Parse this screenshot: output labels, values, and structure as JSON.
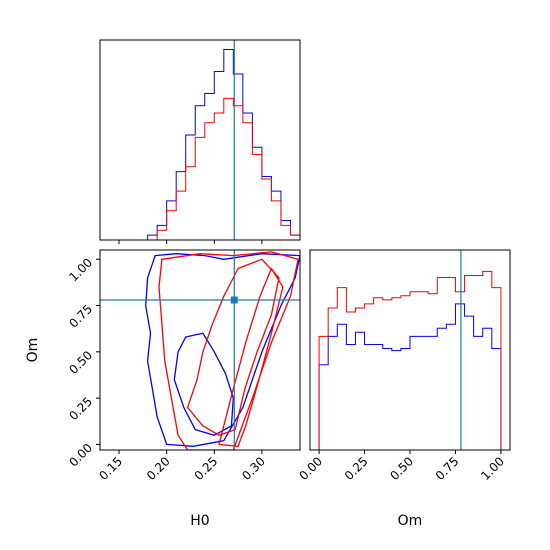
{
  "chart_data": [
    {
      "type": "histogram",
      "panel": "top-left",
      "variable": "H0",
      "xlim": [
        0.13,
        0.34
      ],
      "show_x_tick_labels": false,
      "bins_edges": [
        0.13,
        0.14,
        0.15,
        0.16,
        0.17,
        0.18,
        0.19,
        0.2,
        0.21,
        0.22,
        0.23,
        0.24,
        0.25,
        0.26,
        0.27,
        0.28,
        0.29,
        0.3,
        0.31,
        0.32,
        0.33,
        0.34
      ],
      "reference_line": 0.271,
      "series": [
        {
          "color": "#0000ff",
          "counts": [
            0,
            0,
            0,
            0,
            0,
            2,
            6,
            16,
            28,
            43,
            55,
            60,
            69,
            78,
            68,
            52,
            38,
            26,
            20,
            8,
            2
          ]
        },
        {
          "color": "#ff0000",
          "counts": [
            0,
            0,
            0,
            0,
            0,
            0,
            4,
            12,
            20,
            30,
            42,
            48,
            52,
            58,
            55,
            48,
            35,
            25,
            16,
            6,
            2
          ]
        }
      ]
    },
    {
      "type": "contour",
      "panel": "bottom-left",
      "xlabel": "H0",
      "ylabel": "Om",
      "xlim": [
        0.13,
        0.34
      ],
      "ylim": [
        -0.03,
        1.05
      ],
      "x_ticks": [
        "0.15",
        "0.20",
        "0.25",
        "0.30"
      ],
      "y_ticks": [
        "0.00",
        "0.25",
        "0.50",
        "0.75",
        "1.00"
      ],
      "reference_point": {
        "H0": 0.271,
        "Om": 0.78
      },
      "series": [
        {
          "color": "#0000ff",
          "contours": [
            [
              [
                0.188,
                1.02
              ],
              [
                0.18,
                0.9
              ],
              [
                0.178,
                0.75
              ],
              [
                0.183,
                0.6
              ],
              [
                0.18,
                0.45
              ],
              [
                0.185,
                0.3
              ],
              [
                0.19,
                0.15
              ],
              [
                0.2,
                0.0
              ],
              [
                0.228,
                -0.01
              ],
              [
                0.26,
                0.02
              ],
              [
                0.28,
                0.2
              ],
              [
                0.3,
                0.5
              ],
              [
                0.32,
                0.75
              ],
              [
                0.335,
                0.9
              ],
              [
                0.34,
                1.02
              ],
              [
                0.3,
                1.03
              ],
              [
                0.26,
                1.0
              ],
              [
                0.24,
                1.02
              ],
              [
                0.21,
                1.03
              ]
            ],
            [
              [
                0.208,
                0.35
              ],
              [
                0.212,
                0.5
              ],
              [
                0.22,
                0.58
              ],
              [
                0.238,
                0.6
              ],
              [
                0.25,
                0.5
              ],
              [
                0.262,
                0.38
              ],
              [
                0.27,
                0.25
              ],
              [
                0.268,
                0.1
              ],
              [
                0.25,
                0.05
              ],
              [
                0.23,
                0.08
              ],
              [
                0.218,
                0.2
              ]
            ]
          ]
        },
        {
          "color": "#ff0000",
          "contours": [
            [
              [
                0.195,
                1.0
              ],
              [
                0.192,
                0.85
              ],
              [
                0.195,
                0.65
              ],
              [
                0.198,
                0.45
              ],
              [
                0.205,
                0.25
              ],
              [
                0.212,
                0.05
              ],
              [
                0.222,
                -0.03
              ],
              [
                0.27,
                -0.03
              ],
              [
                0.29,
                0.25
              ],
              [
                0.31,
                0.55
              ],
              [
                0.33,
                0.8
              ],
              [
                0.338,
                1.0
              ],
              [
                0.31,
                1.04
              ],
              [
                0.27,
                1.02
              ],
              [
                0.235,
                1.03
              ]
            ],
            [
              [
                0.222,
                0.2
              ],
              [
                0.232,
                0.35
              ],
              [
                0.238,
                0.5
              ],
              [
                0.248,
                0.65
              ],
              [
                0.26,
                0.8
              ],
              [
                0.275,
                0.95
              ],
              [
                0.3,
                1.0
              ],
              [
                0.318,
                0.9
              ],
              [
                0.31,
                0.7
              ],
              [
                0.295,
                0.5
              ],
              [
                0.282,
                0.3
              ],
              [
                0.272,
                0.08
              ],
              [
                0.255,
                0.05
              ],
              [
                0.238,
                0.1
              ]
            ],
            [
              [
                0.255,
                0.0
              ],
              [
                0.27,
                0.3
              ],
              [
                0.283,
                0.55
              ],
              [
                0.298,
                0.8
              ],
              [
                0.31,
                0.95
              ],
              [
                0.322,
                0.85
              ],
              [
                0.31,
                0.6
              ],
              [
                0.297,
                0.35
              ],
              [
                0.283,
                0.1
              ],
              [
                0.275,
                -0.01
              ]
            ]
          ]
        }
      ]
    },
    {
      "type": "histogram",
      "panel": "bottom-right",
      "variable": "Om",
      "xlabel": "Om",
      "xlim": [
        -0.05,
        1.05
      ],
      "x_ticks": [
        "0.00",
        "0.25",
        "0.50",
        "0.75",
        "1.00"
      ],
      "bins_edges": [
        0.0,
        0.05,
        0.1,
        0.15,
        0.2,
        0.25,
        0.3,
        0.35,
        0.4,
        0.45,
        0.5,
        0.55,
        0.6,
        0.65,
        0.7,
        0.75,
        0.8,
        0.85,
        0.9,
        0.95,
        1.0
      ],
      "reference_line": 0.78,
      "series": [
        {
          "color": "#0000ff",
          "counts": [
            42,
            56,
            62,
            52,
            58,
            52,
            52,
            50,
            49,
            50,
            56,
            56,
            56,
            60,
            62,
            72,
            66,
            56,
            60,
            50
          ]
        },
        {
          "color": "#ff0000",
          "counts": [
            56,
            70,
            80,
            68,
            70,
            72,
            75,
            74,
            75,
            76,
            78,
            78,
            77,
            85,
            85,
            78,
            86,
            86,
            88,
            80
          ]
        }
      ]
    }
  ]
}
